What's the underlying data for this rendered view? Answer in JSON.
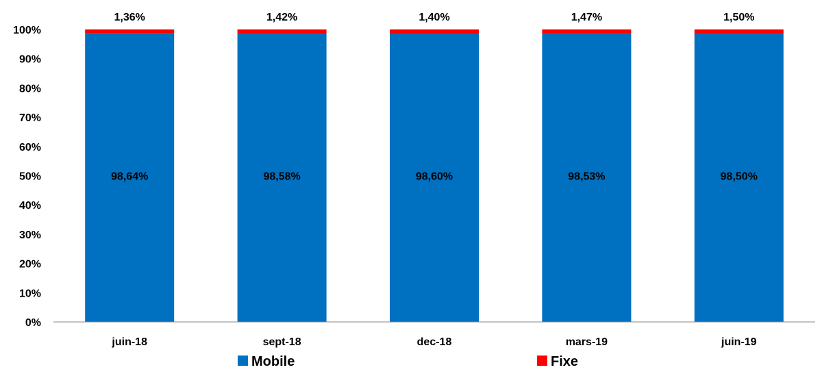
{
  "chart_data": {
    "type": "bar",
    "stacked": true,
    "percent": true,
    "categories": [
      "juin-18",
      "sept-18",
      "dec-18",
      "mars-19",
      "juin-19"
    ],
    "series": [
      {
        "name": "Mobile",
        "color": "#0070C0",
        "values": [
          98.64,
          98.58,
          98.6,
          98.53,
          98.5
        ],
        "labels": [
          "98,64%",
          "98,58%",
          "98,60%",
          "98,53%",
          "98,50%"
        ]
      },
      {
        "name": "Fixe",
        "color": "#FF0000",
        "values": [
          1.36,
          1.42,
          1.4,
          1.47,
          1.5
        ],
        "labels": [
          "1,36%",
          "1,42%",
          "1,40%",
          "1,47%",
          "1,50%"
        ]
      }
    ],
    "yticks": [
      "0%",
      "10%",
      "20%",
      "30%",
      "40%",
      "50%",
      "60%",
      "70%",
      "80%",
      "90%",
      "100%"
    ],
    "ylim": [
      0,
      100
    ],
    "legend": "bottom",
    "grid": false
  }
}
